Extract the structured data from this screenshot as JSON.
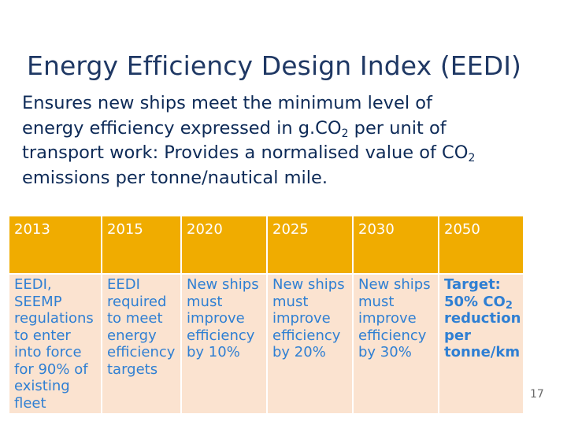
{
  "slide": {
    "title": "Energy Efficiency Design Index (EEDI)",
    "body": {
      "line1": "Ensures new ships meet the minimum level of",
      "line2_a": "energy efficiency expressed in g.CO",
      "line2_sub": "2",
      "line2_b": " per unit of",
      "line3_a": "transport work: Provides a normalised value of CO",
      "line3_sub": "2",
      "line4": "emissions per tonne/nautical mile."
    },
    "table": {
      "headers": [
        "2013",
        "2015",
        "2020",
        "2025",
        "2030",
        "2050"
      ],
      "cells": [
        "EEDI, SEEMP regulations to enter into force for 90% of existing fleet",
        "EEDI required to meet energy efficiency targets",
        "New ships must improve efficiency by 10%",
        "New ships must improve efficiency by 20%",
        "New ships must improve efficiency by 30%"
      ],
      "last_cell": {
        "line1": "Target:",
        "line2_a": "50% CO",
        "line2_sub": "2",
        "line3": "reduction per tonne/km"
      }
    },
    "page_number": "17"
  },
  "colors": {
    "title": "#1f3864",
    "body_text": "#0d2a57",
    "header_fill": "#f0ac00",
    "cell_fill": "#fbe3d0",
    "cell_text": "#2f7fd3"
  }
}
